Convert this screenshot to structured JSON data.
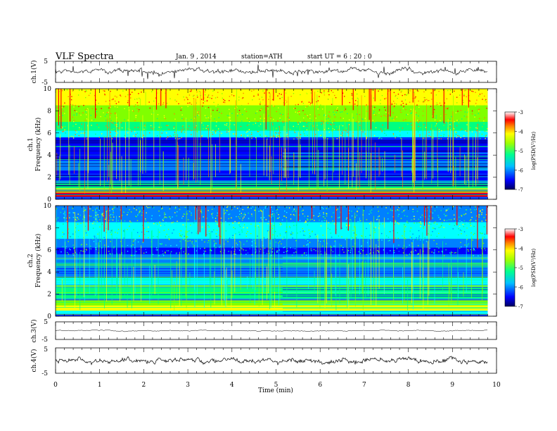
{
  "header": {
    "title": "VLF  Spectra",
    "date": "Jan.  9  ,  2014",
    "station": "station=ATH",
    "start": "start  UT  =    6  : 20 : 0"
  },
  "chart_data": [
    {
      "type": "line",
      "name": "ch1-waveform",
      "ylabel": "ch.1(V)",
      "ylim": [
        -5,
        5
      ],
      "yticks": [
        "5",
        "-5"
      ],
      "xlim": [
        0,
        10
      ],
      "baseline": 0
    },
    {
      "type": "heatmap",
      "name": "ch1-spectrogram",
      "ylabel": "ch.1\nFrequency  (kHz)",
      "ylim": [
        0,
        10
      ],
      "yticks": [
        "0",
        "2",
        "4",
        "6",
        "8",
        "10"
      ],
      "xlim": [
        0,
        10
      ],
      "data_end_min": 9.8,
      "colorbar": {
        "label": "log(PSD(V²/Hz)",
        "range": [
          -7,
          -3
        ],
        "ticks": [
          "-3",
          "-4",
          "-5",
          "-6",
          "-7"
        ]
      }
    },
    {
      "type": "heatmap",
      "name": "ch2-spectrogram",
      "ylabel": "ch.2\nFrequency  (kHz)",
      "ylim": [
        0,
        10
      ],
      "yticks": [
        "0",
        "2",
        "4",
        "6",
        "8",
        "10"
      ],
      "xlim": [
        0,
        10
      ],
      "data_end_min": 9.8,
      "colorbar": {
        "label": "log(PSD(V²/Hz)",
        "range": [
          -7,
          -3
        ],
        "ticks": [
          "-3",
          "-4",
          "-5",
          "-6",
          "-7"
        ]
      }
    },
    {
      "type": "line",
      "name": "ch3-waveform",
      "ylabel": "ch.3(V)",
      "ylim": [
        -5,
        5
      ],
      "yticks": [
        "5",
        "-5"
      ],
      "xlim": [
        0,
        10
      ],
      "baseline": 0
    },
    {
      "type": "line",
      "name": "ch4-waveform",
      "ylabel": "ch.4(V)",
      "ylim": [
        -5,
        5
      ],
      "yticks": [
        "5",
        "-5"
      ],
      "xlim": [
        0,
        10
      ],
      "baseline": 0
    }
  ],
  "xaxis": {
    "label": "Time  (min)",
    "ticks": [
      "0",
      "1",
      "2",
      "3",
      "4",
      "5",
      "6",
      "7",
      "8",
      "9",
      "10"
    ],
    "range": [
      0,
      10
    ]
  },
  "colors": {
    "colormap": [
      "#000080",
      "#0000ff",
      "#0080ff",
      "#00ffff",
      "#00ff80",
      "#80ff00",
      "#ffff00",
      "#ff8000",
      "#ff0000",
      "#ffffff"
    ]
  }
}
